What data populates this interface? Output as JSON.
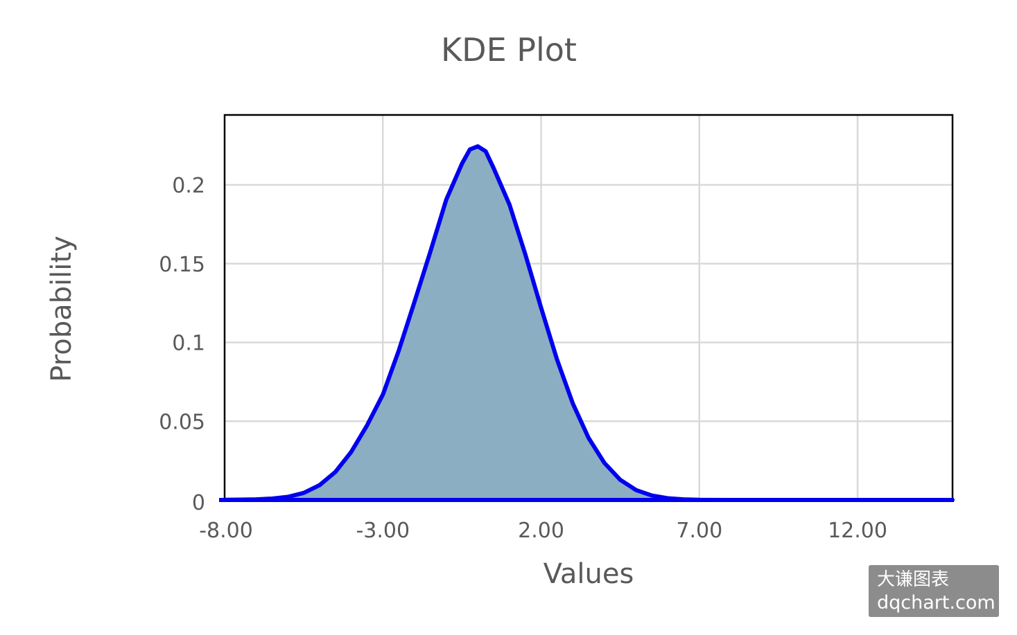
{
  "chart_data": {
    "type": "area",
    "title": "KDE Plot",
    "xlabel": "Values",
    "ylabel": "Probability",
    "xlim": [
      -8,
      15
    ],
    "ylim": [
      0,
      0.22
    ],
    "x_ticks": [
      -8,
      -3,
      2,
      7,
      12
    ],
    "x_tick_labels": [
      "-8.00",
      "-3.00",
      "2.00",
      "7.00",
      "12.00"
    ],
    "y_ticks": [
      0,
      0.05,
      0.1,
      0.15,
      0.2
    ],
    "y_tick_labels": [
      "0",
      "0.05",
      "0.1",
      "0.15",
      "0.2"
    ],
    "grid": true,
    "series": [
      {
        "x": [
          -8,
          -7.5,
          -7,
          -6.5,
          -6,
          -5.5,
          -5,
          -4.5,
          -4,
          -3.5,
          -3,
          -2.5,
          -2,
          -1.5,
          -1,
          -0.5,
          -0.25,
          0,
          0.25,
          0.5,
          1,
          1.5,
          2,
          2.5,
          3,
          3.5,
          4,
          4.5,
          5,
          5.5,
          6,
          6.5,
          7,
          8,
          9,
          10,
          11,
          12,
          13,
          14,
          15
        ],
        "y": [
          0.0001,
          0.0002,
          0.0004,
          0.0009,
          0.002,
          0.0045,
          0.0094,
          0.0178,
          0.0305,
          0.0473,
          0.0669,
          0.0947,
          0.1258,
          0.1575,
          0.1905,
          0.2135,
          0.2225,
          0.2245,
          0.2213,
          0.2107,
          0.1875,
          0.156,
          0.122,
          0.0894,
          0.0613,
          0.0394,
          0.0235,
          0.0128,
          0.0063,
          0.0028,
          0.0011,
          0.0004,
          0.0001,
          0,
          0,
          0,
          0,
          0,
          0,
          0,
          0
        ],
        "line_color": "#0000ee",
        "fill_color": "#8caec2"
      }
    ]
  },
  "watermark": {
    "line1": "大谦图表",
    "line2": "dqchart.com"
  }
}
